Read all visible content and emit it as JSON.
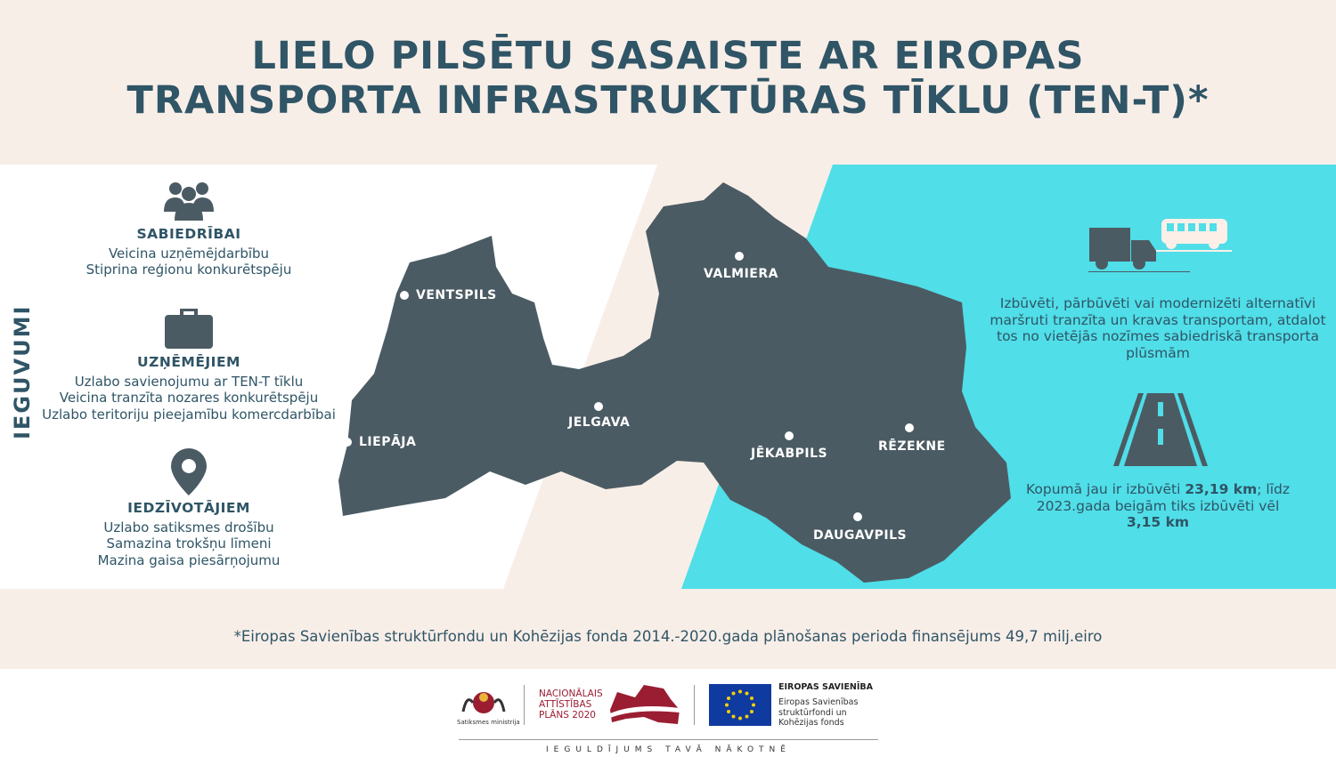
{
  "title": {
    "line1": "LIELO PILSĒTU SASAISTE AR EIROPAS",
    "line2": "TRANSPORTA INFRASTRUKTŪRAS TĪKLU (TEN-T)*"
  },
  "side_label": "IEGUVUMI",
  "benefits": [
    {
      "icon": "people-icon",
      "heading": "SABIEDRĪBAI",
      "lines": [
        "Veicina uzņēmējdarbību",
        "Stiprina reģionu konkurētspēju"
      ]
    },
    {
      "icon": "briefcase-icon",
      "heading": "UZŅĒMĒJIEM",
      "lines": [
        "Uzlabo savienojumu ar TEN-T tīklu",
        "Veicina tranzīta nozares konkurētspēju",
        "Uzlabo teritoriju pieejamību komercdarbībai"
      ]
    },
    {
      "icon": "location-pin-icon",
      "heading": "IEDZĪVOTĀJIEM",
      "lines": [
        "Uzlabo satiksmes drošību",
        "Samazina trokšņu līmeni",
        "Mazina gaisa piesārņojumu"
      ]
    }
  ],
  "cities": [
    "VENTSPILS",
    "LIEPĀJA",
    "JELGAVA",
    "VALMIERA",
    "JĒKABPILS",
    "RĒZEKNE",
    "DAUGAVPILS"
  ],
  "right": {
    "text1": "Izbūvēti, pārbūvēti vai modernizēti alternatīvi maršruti tranzīta un kravas transportam, atdalot tos no vietējās nozīmes sabiedriskā transporta plūsmām",
    "text2_a": "Kopumā jau ir izbūvēti ",
    "text2_b": "23,19 km",
    "text2_c": "; līdz 2023.gada beigām tiks izbūvēti vēl ",
    "text2_d": "3,15 km"
  },
  "footnote": "*Eiropas Savienības struktūrfondu un Kohēzijas fonda 2014.-2020.gada plānošanas perioda finansējums 49,7 milj.eiro",
  "logos": {
    "ministry": "Satiksmes ministrija",
    "nap": [
      "NACIONĀLAIS",
      "ATTĪSTĪBAS",
      "PLĀNS 2020"
    ],
    "eu_title": "EIROPAS SAVIENĪBA",
    "eu_lines": [
      "Eiropas Savienības",
      "struktūrfondi un",
      "Kohēzijas fonds"
    ],
    "slogan": "IEGULDĪJUMS TAVĀ NĀKOTNĒ"
  },
  "colors": {
    "dark": "#4b5b63",
    "cyan": "#50dee8",
    "title": "#2f5566",
    "bg": "#f8eee8",
    "nap_red": "#9b1d32",
    "eu_blue": "#0f3aa0"
  }
}
